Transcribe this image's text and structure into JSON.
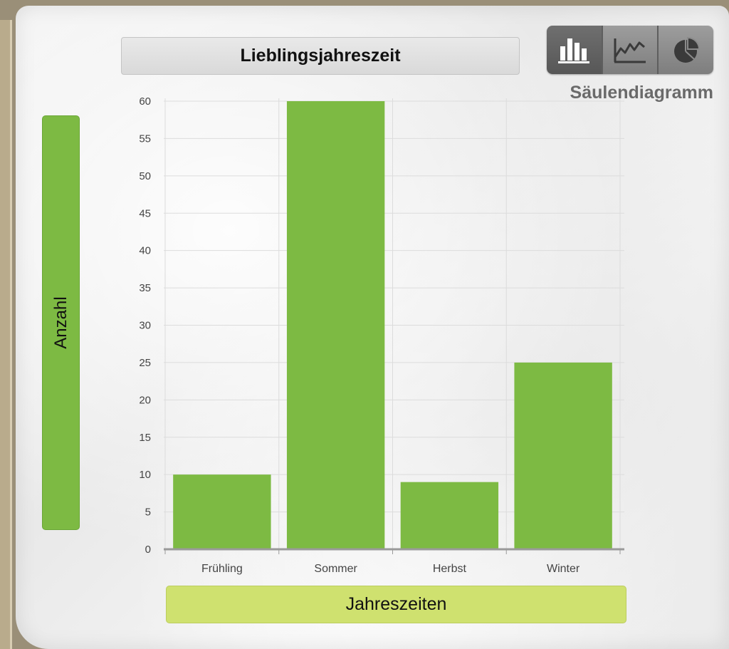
{
  "chart_data": {
    "type": "bar",
    "title": "Lieblingsjahreszeit",
    "xlabel": "Jahreszeiten",
    "ylabel": "Anzahl",
    "categories": [
      "Frühling",
      "Sommer",
      "Herbst",
      "Winter"
    ],
    "values": [
      10,
      60,
      9,
      25
    ],
    "ylim": [
      0,
      60
    ],
    "yticks": [
      "0",
      "5",
      "10",
      "15",
      "20",
      "25",
      "30",
      "35",
      "40",
      "45",
      "50",
      "55",
      "60"
    ],
    "grid": true,
    "bar_color": "#7dba43"
  },
  "controls": {
    "chart_type_label": "Säulendiagramm",
    "buttons": [
      {
        "icon": "bar-chart-icon",
        "active": true
      },
      {
        "icon": "line-chart-icon",
        "active": false
      },
      {
        "icon": "pie-chart-icon",
        "active": false
      }
    ]
  },
  "colors": {
    "ylabel_bar": "#7dba43",
    "xlabel_bar": "#cfe16f"
  }
}
